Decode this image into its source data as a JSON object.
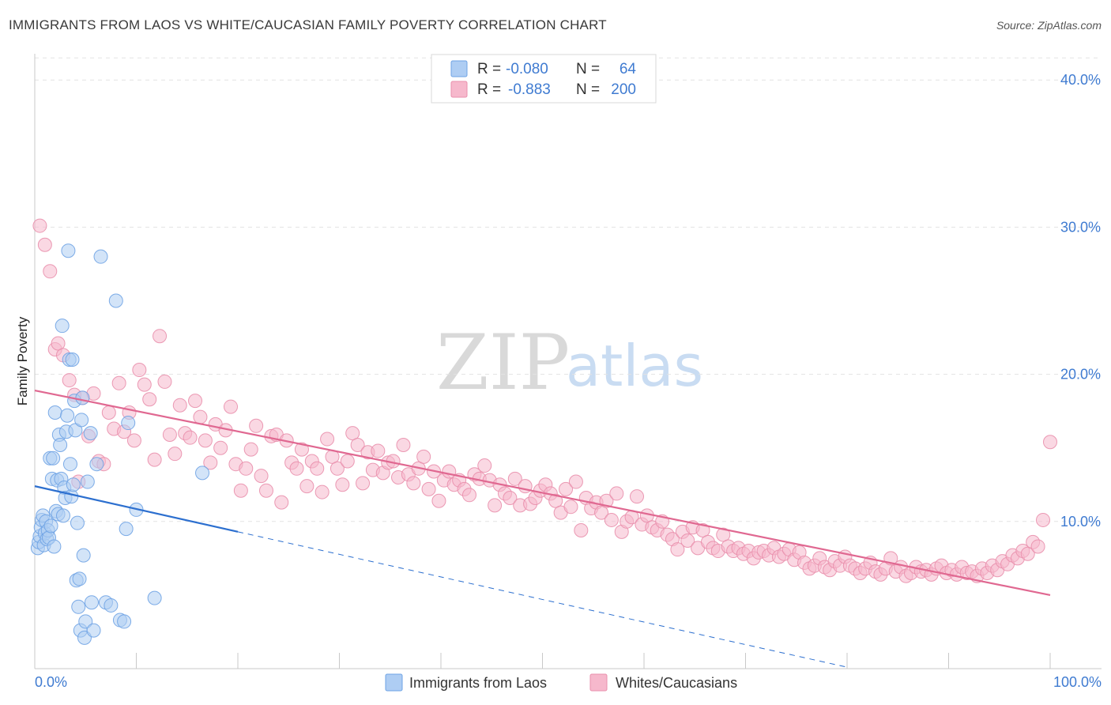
{
  "title": "IMMIGRANTS FROM LAOS VS WHITE/CAUCASIAN FAMILY POVERTY CORRELATION CHART",
  "source": "Source: ZipAtlas.com",
  "watermark": {
    "zip": "ZIP",
    "atlas": "atlas"
  },
  "legend_top": {
    "rows": [
      {
        "r_label": "R =",
        "r_value": "-0.080",
        "n_label": "N =",
        "n_value": "64",
        "color": "#aecdf3"
      },
      {
        "r_label": "R =",
        "r_value": "-0.883",
        "n_label": "N =",
        "n_value": "200",
        "color": "#f6b8cc"
      }
    ]
  },
  "legend_bottom": [
    {
      "label": "Immigrants from Laos",
      "color": "#aecdf3"
    },
    {
      "label": "Whites/Caucasians",
      "color": "#f6b8cc"
    }
  ],
  "chart_data": {
    "type": "scatter",
    "title": "IMMIGRANTS FROM LAOS VS WHITE/CAUCASIAN FAMILY POVERTY CORRELATION CHART",
    "xlabel": "",
    "ylabel": "Family Poverty",
    "xlim": [
      0,
      100
    ],
    "ylim": [
      0,
      42
    ],
    "x_tick_labels": [
      "0.0%",
      "100.0%"
    ],
    "y_ticks": [
      10,
      20,
      30,
      40
    ],
    "y_tick_labels": [
      "10.0%",
      "20.0%",
      "30.0%",
      "40.0%"
    ],
    "grid": true,
    "legend_position": "top-center",
    "series": [
      {
        "name": "Immigrants from Laos",
        "color": "#aecdf3",
        "stroke": "#6fa3e4",
        "r": -0.08,
        "n": 64,
        "trend": {
          "x": [
            0,
            20
          ],
          "y": [
            12.4,
            9.3
          ],
          "dashed_to": [
            80,
            0.1
          ],
          "color": "#2c6fcf"
        },
        "points": [
          [
            0.3,
            8.2
          ],
          [
            0.4,
            8.6
          ],
          [
            0.5,
            9.0
          ],
          [
            0.6,
            9.6
          ],
          [
            0.7,
            10.1
          ],
          [
            0.8,
            10.4
          ],
          [
            0.9,
            8.4
          ],
          [
            1.0,
            9.2
          ],
          [
            1.1,
            10.0
          ],
          [
            1.2,
            8.8
          ],
          [
            1.3,
            9.4
          ],
          [
            1.4,
            8.9
          ],
          [
            1.5,
            14.3
          ],
          [
            1.6,
            9.7
          ],
          [
            1.7,
            12.9
          ],
          [
            1.8,
            14.3
          ],
          [
            1.9,
            8.3
          ],
          [
            2.0,
            17.4
          ],
          [
            2.1,
            10.7
          ],
          [
            2.2,
            12.8
          ],
          [
            2.3,
            10.5
          ],
          [
            2.4,
            15.9
          ],
          [
            2.5,
            15.2
          ],
          [
            2.6,
            12.9
          ],
          [
            2.7,
            23.3
          ],
          [
            2.8,
            10.4
          ],
          [
            2.9,
            12.3
          ],
          [
            3.0,
            11.6
          ],
          [
            3.1,
            16.1
          ],
          [
            3.2,
            17.2
          ],
          [
            3.3,
            28.4
          ],
          [
            3.4,
            21.0
          ],
          [
            3.5,
            13.9
          ],
          [
            3.6,
            11.7
          ],
          [
            3.7,
            21.0
          ],
          [
            3.8,
            12.5
          ],
          [
            3.9,
            18.2
          ],
          [
            4.0,
            16.2
          ],
          [
            4.1,
            6.0
          ],
          [
            4.2,
            9.9
          ],
          [
            4.3,
            4.2
          ],
          [
            4.4,
            6.1
          ],
          [
            4.5,
            2.6
          ],
          [
            4.6,
            16.9
          ],
          [
            4.7,
            18.4
          ],
          [
            4.8,
            7.7
          ],
          [
            4.9,
            2.1
          ],
          [
            5.0,
            3.2
          ],
          [
            5.2,
            12.7
          ],
          [
            5.5,
            16.0
          ],
          [
            5.8,
            2.6
          ],
          [
            6.1,
            13.9
          ],
          [
            6.5,
            28.0
          ],
          [
            7.0,
            4.5
          ],
          [
            7.5,
            4.3
          ],
          [
            8.0,
            25.0
          ],
          [
            8.4,
            3.3
          ],
          [
            8.8,
            3.2
          ],
          [
            9.0,
            9.5
          ],
          [
            9.2,
            16.7
          ],
          [
            10.0,
            10.8
          ],
          [
            11.8,
            4.8
          ],
          [
            16.5,
            13.3
          ],
          [
            5.6,
            4.5
          ]
        ]
      },
      {
        "name": "Whites/Caucasians",
        "color": "#f6b8cc",
        "stroke": "#e98fac",
        "r": -0.883,
        "n": 200,
        "trend": {
          "x": [
            0,
            100
          ],
          "y": [
            18.9,
            5.0
          ],
          "color": "#e06891"
        },
        "points": [
          [
            0.5,
            30.1
          ],
          [
            1.0,
            28.8
          ],
          [
            1.5,
            27.0
          ],
          [
            2.0,
            21.7
          ],
          [
            2.3,
            22.1
          ],
          [
            2.8,
            21.3
          ],
          [
            3.4,
            19.6
          ],
          [
            3.9,
            18.6
          ],
          [
            4.3,
            12.7
          ],
          [
            4.7,
            18.4
          ],
          [
            5.3,
            15.8
          ],
          [
            5.8,
            18.7
          ],
          [
            6.3,
            14.1
          ],
          [
            6.8,
            13.9
          ],
          [
            7.3,
            17.4
          ],
          [
            7.8,
            16.3
          ],
          [
            8.3,
            19.4
          ],
          [
            8.8,
            16.1
          ],
          [
            9.3,
            17.4
          ],
          [
            9.8,
            15.5
          ],
          [
            10.3,
            20.3
          ],
          [
            10.8,
            19.3
          ],
          [
            11.3,
            18.3
          ],
          [
            11.8,
            14.2
          ],
          [
            12.3,
            22.6
          ],
          [
            12.8,
            19.5
          ],
          [
            13.3,
            15.9
          ],
          [
            13.8,
            14.6
          ],
          [
            14.3,
            17.9
          ],
          [
            14.8,
            16.0
          ],
          [
            15.3,
            15.7
          ],
          [
            15.8,
            18.2
          ],
          [
            16.3,
            17.1
          ],
          [
            16.8,
            15.5
          ],
          [
            17.3,
            14.0
          ],
          [
            17.8,
            16.6
          ],
          [
            18.3,
            15.0
          ],
          [
            18.8,
            16.2
          ],
          [
            19.3,
            17.8
          ],
          [
            19.8,
            13.9
          ],
          [
            20.3,
            12.1
          ],
          [
            20.8,
            13.6
          ],
          [
            21.3,
            14.9
          ],
          [
            21.8,
            16.5
          ],
          [
            22.3,
            13.1
          ],
          [
            22.8,
            12.1
          ],
          [
            23.3,
            15.8
          ],
          [
            23.8,
            15.9
          ],
          [
            24.3,
            11.3
          ],
          [
            24.8,
            15.5
          ],
          [
            25.3,
            14.0
          ],
          [
            25.8,
            13.6
          ],
          [
            26.3,
            14.9
          ],
          [
            26.8,
            12.4
          ],
          [
            27.3,
            14.1
          ],
          [
            27.8,
            13.6
          ],
          [
            28.3,
            12.0
          ],
          [
            28.8,
            15.6
          ],
          [
            29.3,
            14.4
          ],
          [
            29.8,
            13.6
          ],
          [
            30.3,
            12.5
          ],
          [
            30.8,
            14.1
          ],
          [
            31.3,
            16.0
          ],
          [
            31.8,
            15.2
          ],
          [
            32.3,
            12.6
          ],
          [
            32.8,
            14.7
          ],
          [
            33.3,
            13.5
          ],
          [
            33.8,
            14.8
          ],
          [
            34.3,
            13.3
          ],
          [
            34.8,
            14.0
          ],
          [
            35.3,
            14.1
          ],
          [
            35.8,
            13.0
          ],
          [
            36.3,
            15.2
          ],
          [
            36.8,
            13.2
          ],
          [
            37.3,
            12.6
          ],
          [
            37.8,
            13.6
          ],
          [
            38.3,
            14.4
          ],
          [
            38.8,
            12.2
          ],
          [
            39.3,
            13.4
          ],
          [
            39.8,
            11.4
          ],
          [
            40.3,
            12.8
          ],
          [
            40.8,
            13.4
          ],
          [
            41.3,
            12.5
          ],
          [
            41.8,
            12.8
          ],
          [
            42.3,
            12.2
          ],
          [
            42.8,
            11.8
          ],
          [
            43.3,
            13.2
          ],
          [
            43.8,
            12.9
          ],
          [
            44.3,
            13.8
          ],
          [
            44.8,
            12.8
          ],
          [
            45.3,
            11.1
          ],
          [
            45.8,
            12.5
          ],
          [
            46.3,
            11.9
          ],
          [
            46.8,
            11.6
          ],
          [
            47.3,
            12.9
          ],
          [
            47.8,
            11.1
          ],
          [
            48.3,
            12.4
          ],
          [
            48.8,
            11.2
          ],
          [
            49.3,
            11.6
          ],
          [
            49.8,
            12.1
          ],
          [
            50.3,
            12.5
          ],
          [
            50.8,
            11.9
          ],
          [
            51.3,
            11.4
          ],
          [
            51.8,
            10.6
          ],
          [
            52.3,
            12.2
          ],
          [
            52.8,
            11.0
          ],
          [
            53.3,
            12.7
          ],
          [
            53.8,
            9.4
          ],
          [
            54.3,
            11.6
          ],
          [
            54.8,
            10.9
          ],
          [
            55.3,
            11.3
          ],
          [
            55.8,
            10.6
          ],
          [
            56.3,
            11.4
          ],
          [
            56.8,
            10.1
          ],
          [
            57.3,
            11.9
          ],
          [
            57.8,
            9.3
          ],
          [
            58.3,
            10.0
          ],
          [
            58.8,
            10.3
          ],
          [
            59.3,
            11.7
          ],
          [
            59.8,
            9.8
          ],
          [
            60.3,
            10.4
          ],
          [
            60.8,
            9.6
          ],
          [
            61.3,
            9.4
          ],
          [
            61.8,
            10.0
          ],
          [
            62.3,
            9.1
          ],
          [
            62.8,
            8.8
          ],
          [
            63.3,
            8.1
          ],
          [
            63.8,
            9.3
          ],
          [
            64.3,
            8.7
          ],
          [
            64.8,
            9.6
          ],
          [
            65.3,
            8.2
          ],
          [
            65.8,
            9.4
          ],
          [
            66.3,
            8.6
          ],
          [
            66.8,
            8.2
          ],
          [
            67.3,
            8.0
          ],
          [
            67.8,
            9.1
          ],
          [
            68.3,
            8.3
          ],
          [
            68.8,
            8.0
          ],
          [
            69.3,
            8.2
          ],
          [
            69.8,
            7.8
          ],
          [
            70.3,
            8.0
          ],
          [
            70.8,
            7.5
          ],
          [
            71.3,
            7.9
          ],
          [
            71.8,
            8.0
          ],
          [
            72.3,
            7.7
          ],
          [
            72.8,
            8.2
          ],
          [
            73.3,
            7.6
          ],
          [
            73.8,
            7.8
          ],
          [
            74.3,
            8.1
          ],
          [
            74.8,
            7.4
          ],
          [
            75.3,
            7.9
          ],
          [
            75.8,
            7.2
          ],
          [
            76.3,
            6.8
          ],
          [
            76.8,
            7.0
          ],
          [
            77.3,
            7.5
          ],
          [
            77.8,
            6.9
          ],
          [
            78.3,
            6.7
          ],
          [
            78.8,
            7.3
          ],
          [
            79.3,
            7.0
          ],
          [
            79.8,
            7.6
          ],
          [
            80.3,
            7.0
          ],
          [
            80.8,
            6.8
          ],
          [
            81.3,
            6.5
          ],
          [
            81.8,
            6.8
          ],
          [
            82.3,
            7.2
          ],
          [
            82.8,
            6.6
          ],
          [
            83.3,
            6.4
          ],
          [
            83.8,
            6.8
          ],
          [
            84.3,
            7.5
          ],
          [
            84.8,
            6.6
          ],
          [
            85.3,
            6.9
          ],
          [
            85.8,
            6.3
          ],
          [
            86.3,
            6.5
          ],
          [
            86.8,
            6.9
          ],
          [
            87.3,
            6.6
          ],
          [
            87.8,
            6.7
          ],
          [
            88.3,
            6.4
          ],
          [
            88.8,
            6.8
          ],
          [
            89.3,
            7.0
          ],
          [
            89.8,
            6.5
          ],
          [
            90.3,
            6.7
          ],
          [
            90.8,
            6.4
          ],
          [
            91.3,
            6.9
          ],
          [
            91.8,
            6.5
          ],
          [
            92.3,
            6.6
          ],
          [
            92.8,
            6.3
          ],
          [
            93.3,
            6.8
          ],
          [
            93.8,
            6.5
          ],
          [
            94.3,
            7.0
          ],
          [
            94.8,
            6.7
          ],
          [
            95.3,
            7.3
          ],
          [
            95.8,
            7.1
          ],
          [
            96.3,
            7.7
          ],
          [
            96.8,
            7.5
          ],
          [
            97.3,
            8.0
          ],
          [
            97.8,
            7.8
          ],
          [
            98.3,
            8.6
          ],
          [
            98.8,
            8.3
          ],
          [
            99.3,
            10.1
          ],
          [
            100.0,
            15.4
          ]
        ]
      }
    ]
  }
}
